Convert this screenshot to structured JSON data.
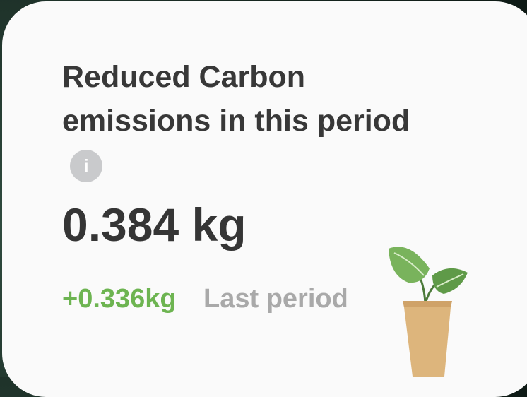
{
  "card": {
    "title": "Reduced Carbon emissions in this period",
    "info_icon": "i",
    "value": "0.384 kg",
    "change": "+0.336kg",
    "change_label": "Last period"
  }
}
